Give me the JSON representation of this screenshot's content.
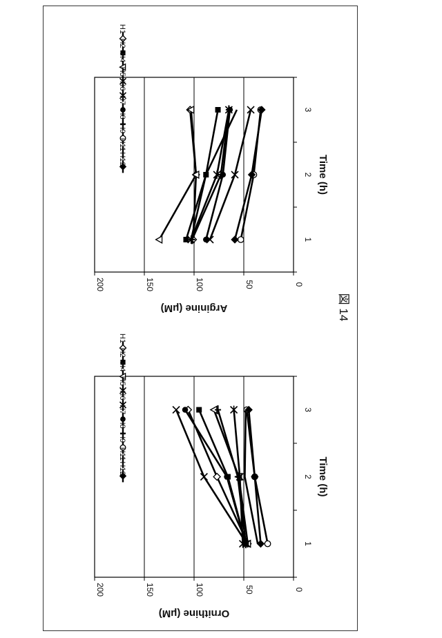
{
  "figure": {
    "caption": "図 14"
  },
  "chart_data": [
    {
      "type": "line",
      "id": "ornithine",
      "title": "",
      "xlabel": "Time (h)",
      "ylabel": "Ornithine (μM)",
      "x": [
        1,
        2,
        3
      ],
      "xticks": [
        "1",
        "2",
        "3"
      ],
      "ylim": [
        0,
        200
      ],
      "yticks": [
        "0",
        "50",
        "100",
        "150",
        "200"
      ],
      "grid": true,
      "legend_position": "right",
      "series": [
        {
          "name": "H1",
          "marker": "diamond-open",
          "values": [
            46,
            77,
            106
          ]
        },
        {
          "name": "H2",
          "marker": "square-filled",
          "values": [
            48,
            66,
            95
          ]
        },
        {
          "name": "H4",
          "marker": "triangle-open",
          "values": [
            46,
            55,
            80
          ]
        },
        {
          "name": "H5",
          "marker": "x",
          "values": [
            47,
            90,
            118
          ]
        },
        {
          "name": "H6",
          "marker": "asterisk",
          "values": [
            51,
            54,
            60
          ]
        },
        {
          "name": "H7",
          "marker": "circle-filled",
          "values": [
            48,
            67,
            109
          ]
        },
        {
          "name": "H8",
          "marker": "plus",
          "values": [
            48,
            56,
            76
          ]
        },
        {
          "name": "H9",
          "marker": "circle-open",
          "values": [
            26,
            39,
            47
          ]
        },
        {
          "name": "H11",
          "marker": "none",
          "values": [
            36,
            49,
            48
          ]
        },
        {
          "name": "H12",
          "marker": "diamond-filled",
          "values": [
            33,
            39,
            45
          ]
        }
      ]
    },
    {
      "type": "line",
      "id": "arginine",
      "title": "",
      "xlabel": "Time (h)",
      "ylabel": "Arginine (μM)",
      "x": [
        1,
        2,
        3
      ],
      "xticks": [
        "1",
        "2",
        "3"
      ],
      "ylim": [
        0,
        200
      ],
      "yticks": [
        "0",
        "50",
        "100",
        "150",
        "200"
      ],
      "grid": true,
      "legend_position": "right",
      "series": [
        {
          "name": "H1",
          "marker": "diamond-open",
          "values": [
            101,
            98,
            104
          ]
        },
        {
          "name": "H2",
          "marker": "square-filled",
          "values": [
            108,
            88,
            76
          ]
        },
        {
          "name": "H4",
          "marker": "triangle-open",
          "values": [
            135,
            98,
            103
          ]
        },
        {
          "name": "H5",
          "marker": "x",
          "values": [
            84,
            59,
            43
          ]
        },
        {
          "name": "H6",
          "marker": "asterisk",
          "values": [
            103,
            77,
            65
          ]
        },
        {
          "name": "H7",
          "marker": "circle-filled",
          "values": [
            88,
            71,
            64
          ]
        },
        {
          "name": "H8",
          "marker": "plus",
          "values": [
            102,
            73,
            65
          ]
        },
        {
          "name": "H9",
          "marker": "circle-open",
          "values": [
            53,
            40,
            33
          ]
        },
        {
          "name": "H11",
          "marker": "none",
          "values": [
            103,
            88,
            57
          ]
        },
        {
          "name": "H12",
          "marker": "diamond-filled",
          "values": [
            59,
            42,
            32
          ]
        }
      ]
    }
  ]
}
